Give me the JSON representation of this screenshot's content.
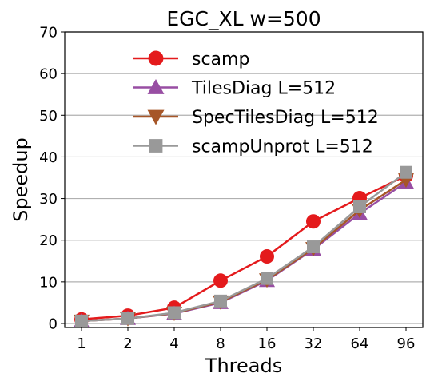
{
  "chart_data": {
    "type": "line",
    "title": "EGC_XL w=500",
    "xlabel": "Threads",
    "ylabel": "Speedup",
    "categories": [
      "1",
      "2",
      "4",
      "8",
      "16",
      "32",
      "64",
      "96"
    ],
    "ylim": [
      0,
      70
    ],
    "yticks": [
      0,
      10,
      20,
      30,
      40,
      50,
      60,
      70
    ],
    "grid": "horizontal",
    "legend_position": "top",
    "series": [
      {
        "name": "scamp",
        "color": "#e41a1c",
        "marker": "circle",
        "values": [
          1.0,
          1.9,
          3.8,
          10.3,
          16.1,
          24.5,
          30.1,
          35.5
        ]
      },
      {
        "name": "TilesDiag L=512",
        "color": "#984ea3",
        "marker": "triangle-up",
        "values": [
          0.6,
          1.2,
          2.4,
          5.0,
          10.3,
          17.8,
          26.4,
          33.9
        ]
      },
      {
        "name": "SpecTilesDiag L=512",
        "color": "#a65628",
        "marker": "triangle-down",
        "values": [
          0.6,
          1.2,
          2.5,
          5.2,
          10.5,
          18.0,
          27.2,
          34.5
        ]
      },
      {
        "name": "scampUnprot L=512",
        "color": "#999999",
        "marker": "square",
        "values": [
          0.6,
          1.2,
          2.6,
          5.4,
          10.8,
          18.4,
          28.0,
          36.3
        ]
      }
    ]
  }
}
